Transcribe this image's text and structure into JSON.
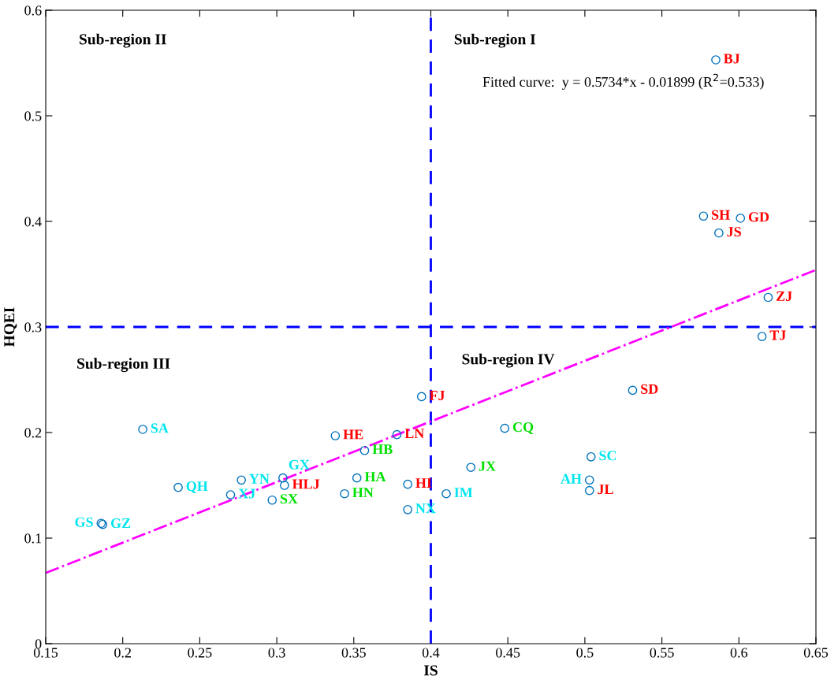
{
  "chart_data": {
    "type": "scatter",
    "xlabel": "IS",
    "ylabel": "HQEI",
    "xlim": [
      0.15,
      0.65
    ],
    "ylim": [
      0,
      0.6
    ],
    "xticks": [
      0.15,
      0.2,
      0.25,
      0.3,
      0.35,
      0.4,
      0.45,
      0.5,
      0.55,
      0.6,
      0.65
    ],
    "yticks": [
      0,
      0.1,
      0.2,
      0.3,
      0.4,
      0.5,
      0.6
    ],
    "grid": false,
    "legend": false,
    "marker": "circle",
    "series": [
      {
        "color": "#0072bd",
        "x": [
          0.585,
          0.577,
          0.601,
          0.587,
          0.619,
          0.615,
          0.531,
          0.394,
          0.378,
          0.338,
          0.385,
          0.305,
          0.503
        ],
        "values": [
          0.553,
          0.405,
          0.403,
          0.389,
          0.328,
          0.291,
          0.24,
          0.234,
          0.198,
          0.197,
          0.151,
          0.15,
          0.145
        ],
        "value_labels": [
          "BJ",
          "SH",
          "GD",
          "JS",
          "ZJ",
          "TJ",
          "SD",
          "FJ",
          "LN",
          "HE",
          "HI",
          "HLJ",
          "JL"
        ]
      },
      {
        "color": "#0072bd",
        "x": [
          0.448,
          0.357,
          0.426,
          0.352,
          0.344,
          0.297
        ],
        "values": [
          0.204,
          0.183,
          0.167,
          0.157,
          0.142,
          0.136
        ],
        "value_labels": [
          "CQ",
          "HB",
          "JX",
          "HA",
          "HN",
          "SX"
        ]
      },
      {
        "color": "#0072bd",
        "x": [
          0.213,
          0.504,
          0.277,
          0.304,
          0.503,
          0.236,
          0.27,
          0.41,
          0.385,
          0.187,
          0.186
        ],
        "values": [
          0.203,
          0.177,
          0.155,
          0.157,
          0.155,
          0.148,
          0.141,
          0.142,
          0.127,
          0.113,
          0.114
        ],
        "value_labels": [
          "SA",
          "SC",
          "YN",
          "GX",
          "AH",
          "QH",
          "XJ",
          "IM",
          "NX",
          "GZ",
          "GS"
        ]
      },
      {
        "type": "line",
        "color": "#ff00ff",
        "line_style": "dashdot",
        "marker": "none",
        "x": [
          0.15,
          0.65
        ],
        "values": [
          0.067,
          0.354
        ]
      }
    ],
    "ref_lines": [
      {
        "axis": "x",
        "value": 0.4,
        "color": "#0000ff",
        "line_style": "dashed"
      },
      {
        "axis": "y",
        "value": 0.3,
        "color": "#0000ff",
        "line_style": "dashed"
      }
    ],
    "annotations": [
      "Sub-region I",
      "Sub-region II",
      "Sub-region III",
      "Sub-region IV",
      "Fitted curve:  y = 0.5734*x - 0.01899 (R$^{2}$=0.533)"
    ]
  }
}
